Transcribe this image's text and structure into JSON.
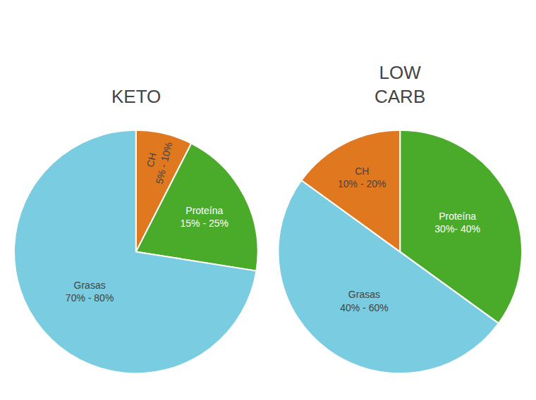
{
  "chart_data": [
    {
      "type": "pie",
      "title": "KETO",
      "categories": [
        "CH",
        "Proteína",
        "Grasas"
      ],
      "values": [
        7.5,
        20.0,
        72.5
      ],
      "annotations": [
        "5% - 10%",
        "15% - 25%",
        "70% - 80%"
      ],
      "colors": [
        "#e07820",
        "#4aaa2a",
        "#7acce0"
      ]
    },
    {
      "type": "pie",
      "title": "LOW\nCARB",
      "categories": [
        "Proteína",
        "Grasas",
        "CH"
      ],
      "values": [
        35.0,
        50.0,
        15.0
      ],
      "annotations": [
        "30%- 40%",
        "40% - 60%",
        "10% - 20%"
      ],
      "colors": [
        "#4aaa2a",
        "#7acce0",
        "#e07820"
      ]
    }
  ]
}
